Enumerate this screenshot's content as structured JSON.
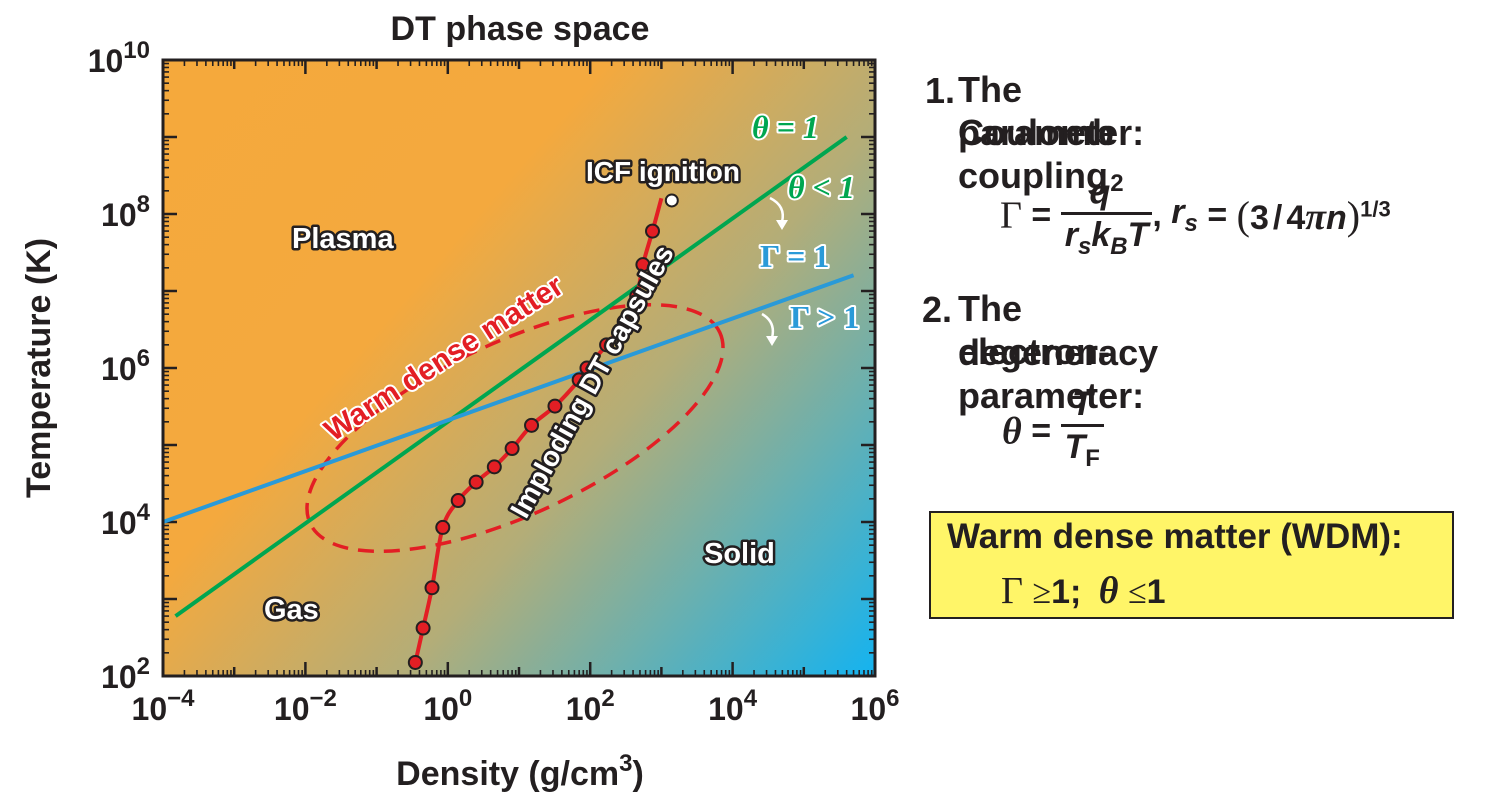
{
  "chart_data": {
    "type": "line",
    "title": "DT phase space",
    "xlabel": "Density (g/cm",
    "xlabel_sup": "3",
    "xlabel_end": ")",
    "ylabel": "Temperature (K)",
    "x_scale": "log",
    "y_scale": "log",
    "xlim": [
      0.0001,
      1000000
    ],
    "ylim": [
      100,
      10000000000
    ],
    "x_ticks": [
      {
        "base": "10",
        "exp": "−4",
        "value": 0.0001
      },
      {
        "base": "10",
        "exp": "−2",
        "value": 0.01
      },
      {
        "base": "10",
        "exp": "0",
        "value": 1
      },
      {
        "base": "10",
        "exp": "2",
        "value": 100
      },
      {
        "base": "10",
        "exp": "4",
        "value": 10000
      },
      {
        "base": "10",
        "exp": "6",
        "value": 1000000
      }
    ],
    "y_ticks": [
      {
        "base": "10",
        "exp": "2",
        "value": 100
      },
      {
        "base": "10",
        "exp": "4",
        "value": 10000
      },
      {
        "base": "10",
        "exp": "6",
        "value": 1000000
      },
      {
        "base": "10",
        "exp": "8",
        "value": 100000000
      },
      {
        "base": "10",
        "exp": "10",
        "value": 10000000000
      }
    ],
    "background": {
      "type": "gradient",
      "from_color": "#f5a93c",
      "to_color": "#1cb1ea"
    },
    "lines": [
      {
        "id": "theta",
        "label": "θ = 1",
        "color": "#00a650",
        "points": [
          [
            0.00015,
            600
          ],
          [
            400000,
            1000000000
          ]
        ]
      },
      {
        "id": "gamma",
        "label": "Γ = 1",
        "color": "#2a9ad8",
        "points": [
          [
            0.0001,
            10000
          ],
          [
            500000,
            16000000
          ]
        ]
      }
    ],
    "regime_labels": [
      {
        "text": "θ < 1",
        "color": "#00a650"
      },
      {
        "text": "Γ > 1",
        "color": "#2a9ad8"
      }
    ],
    "capsule_path": {
      "label": "Imploding DT capsules",
      "color": "#e31e24",
      "points": [
        [
          0.35,
          150
        ],
        [
          0.45,
          420
        ],
        [
          0.6,
          1400
        ],
        [
          0.85,
          8500
        ],
        [
          1.4,
          19000
        ],
        [
          2.5,
          33000
        ],
        [
          4.5,
          52000
        ],
        [
          8,
          90000
        ],
        [
          15,
          180000
        ],
        [
          32,
          320000
        ],
        [
          70,
          700000
        ],
        [
          90,
          1000000
        ],
        [
          170,
          2000000
        ],
        [
          300,
          4000000
        ],
        [
          450,
          8500000
        ],
        [
          550,
          22000000
        ],
        [
          750,
          60000000
        ],
        [
          1000,
          160000000
        ]
      ],
      "markers": [
        [
          0.35,
          150
        ],
        [
          0.45,
          420
        ],
        [
          0.6,
          1400
        ],
        [
          0.85,
          8500
        ],
        [
          1.4,
          19000
        ],
        [
          2.5,
          33000
        ],
        [
          4.5,
          52000
        ],
        [
          8,
          90000
        ],
        [
          15,
          180000
        ],
        [
          32,
          320000
        ],
        [
          70,
          700000
        ],
        [
          90,
          1000000
        ],
        [
          170,
          2000000
        ],
        [
          300,
          4000000
        ],
        [
          450,
          8500000
        ],
        [
          550,
          22000000
        ],
        [
          750,
          60000000
        ]
      ]
    },
    "ignition_point": {
      "label": "ICF ignition",
      "x": 1400,
      "y": 150000000
    },
    "wdm_region": {
      "label": "Warm dense matter",
      "color": "#e31e24"
    },
    "region_labels": [
      "Plasma",
      "Gas",
      "Solid"
    ]
  },
  "panel": {
    "item1_num": "1.",
    "item1_line1": "The Coulomb coupling",
    "item1_line2": "parameter:",
    "f1_lhs": "Γ",
    "f1_eq": "=",
    "f1_num_q": "q",
    "f1_num_exp": "2",
    "f1_den_r": "r",
    "f1_den_s": "s",
    "f1_den_k": "k",
    "f1_den_B": "B",
    "f1_den_T": "T",
    "f1_comma": ",",
    "f1_rs_r": "r",
    "f1_rs_s": "s",
    "f1_rhs_eq": "=",
    "f1_rhs_open": "(",
    "f1_rhs_3": "3",
    "f1_rhs_slash": "/",
    "f1_rhs_4": "4",
    "f1_rhs_pi": "π",
    "f1_rhs_n": "n",
    "f1_rhs_close": ")",
    "f1_rhs_exp": "1/3",
    "item2_num": "2.",
    "item2_line1": "The electron-",
    "item2_line2": "degeneracy parameter:",
    "f2_lhs": "θ",
    "f2_eq": "=",
    "f2_num": "T",
    "f2_den": "T",
    "f2_den_sub": "F",
    "wdm_title": "Warm dense matter (WDM):",
    "wdm_gamma": "Γ",
    "wdm_ge": "≥",
    "wdm_one_a": "1;",
    "wdm_theta": "θ",
    "wdm_le": "≤",
    "wdm_one_b": "1"
  }
}
